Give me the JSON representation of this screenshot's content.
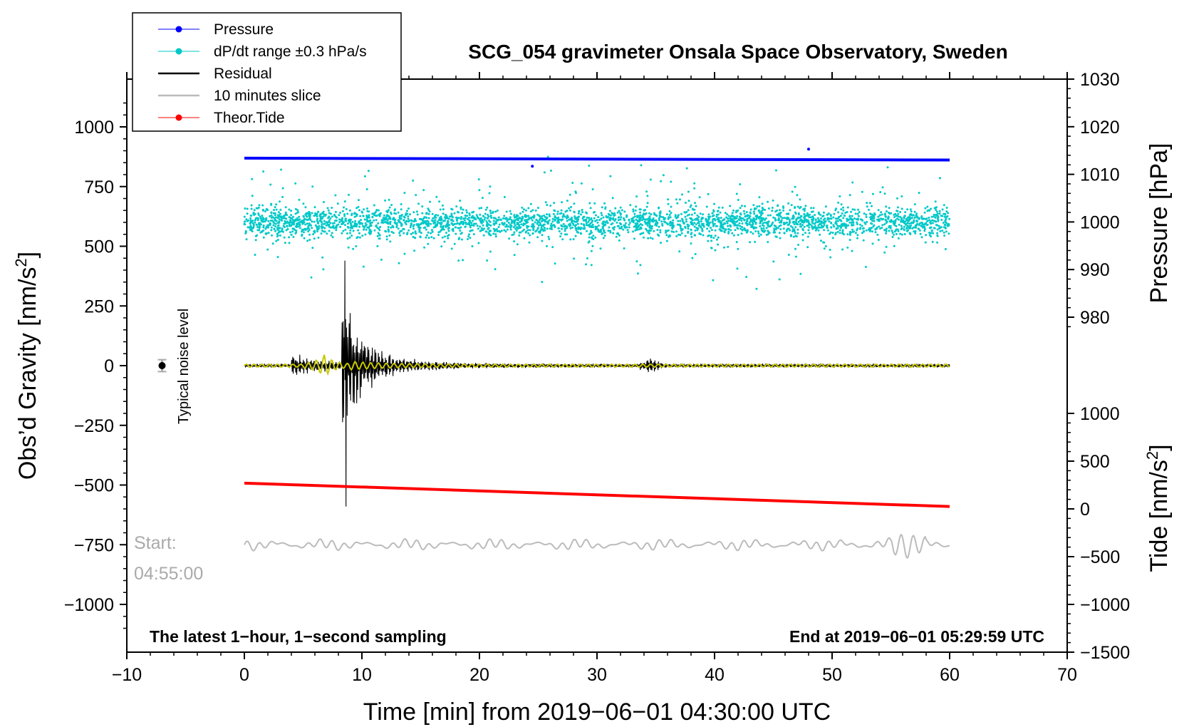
{
  "chart_data": {
    "type": "line",
    "title": "SCG_054 gravimeter Onsala Space Observatory, Sweden",
    "xlabel": "Time [min] from 2019−06−01 04:30:00 UTC",
    "ylabel_left_main": "Obs’d Gravity [nm/s",
    "ylabel_left_sup": "2",
    "ylabel_left_end": "]",
    "ylabel_right_top": "Pressure [hPa]",
    "ylabel_right_bottom_main": "Tide [nm/s",
    "ylabel_right_bottom_sup": "2",
    "ylabel_right_bottom_end": "]",
    "xlim": [
      -10,
      70
    ],
    "ylim_left": [
      -1200,
      1200
    ],
    "x_ticks": [
      "−10",
      "0",
      "10",
      "20",
      "30",
      "40",
      "50",
      "60",
      "70"
    ],
    "x_tick_values": [
      -10,
      0,
      10,
      20,
      30,
      40,
      50,
      60,
      70
    ],
    "left_ticks": [
      "1000",
      "750",
      "500",
      "250",
      "0",
      "−250",
      "−500",
      "−750",
      "−1000"
    ],
    "left_tick_values": [
      1000,
      750,
      500,
      250,
      0,
      -250,
      -500,
      -750,
      -1000
    ],
    "pressure_ticks": [
      "1030",
      "1020",
      "1010",
      "1000",
      "990",
      "980"
    ],
    "pressure_tick_values": [
      1030,
      1020,
      1010,
      1000,
      990,
      980
    ],
    "tide_ticks": [
      "1000",
      "500",
      "0",
      "−500",
      "−1000",
      "−1500"
    ],
    "tide_tick_values": [
      1000,
      500,
      0,
      -500,
      -1000,
      -1500
    ],
    "legend": [
      {
        "label": "Pressure",
        "color": "#0000ff",
        "marker": "dot"
      },
      {
        "label": "dP/dt range ±0.3 hPa/s",
        "color": "#00c8c8",
        "marker": "dot"
      },
      {
        "label": "Residual",
        "color": "#000000",
        "marker": "line"
      },
      {
        "label": "10 minutes slice",
        "color": "#bbbbbb",
        "marker": "line"
      },
      {
        "label": "Theor.Tide",
        "color": "#ff0000",
        "marker": "dot"
      }
    ],
    "series": [
      {
        "name": "Pressure",
        "axis": "pressure",
        "color": "#0000ff",
        "x": [
          0,
          60
        ],
        "values": [
          1013.4,
          1013.0
        ]
      },
      {
        "name": "dP/dt range ±0.3 hPa/s",
        "axis": "left",
        "color": "#00c8c8",
        "center": 600,
        "spread": 110,
        "x": [
          0,
          60
        ]
      },
      {
        "name": "Residual",
        "axis": "left",
        "color": "#000000",
        "event_min": 8.6,
        "peak_max": 440,
        "peak_min": -590,
        "second_event_min": 34.5,
        "x": [
          0,
          60
        ]
      },
      {
        "name": "Residual filtered",
        "axis": "left",
        "color": "#c8c800",
        "x": [
          0,
          60
        ]
      },
      {
        "name": "Theor.Tide",
        "axis": "tide",
        "color": "#ff0000",
        "x": [
          0,
          60
        ],
        "values": [
          270,
          25
        ]
      },
      {
        "name": "10 minutes slice",
        "axis": "left",
        "color": "#bbbbbb",
        "offset": -750,
        "x": [
          0,
          60
        ]
      }
    ],
    "noise_marker": {
      "x": -7,
      "y": 0,
      "error": 25,
      "label": "Typical noise level"
    },
    "start_label": "Start:",
    "start_time": "04:55:00",
    "note_left": "The latest 1−hour, 1−second sampling",
    "note_right": "End at 2019−06−01 05:29:59 UTC"
  }
}
